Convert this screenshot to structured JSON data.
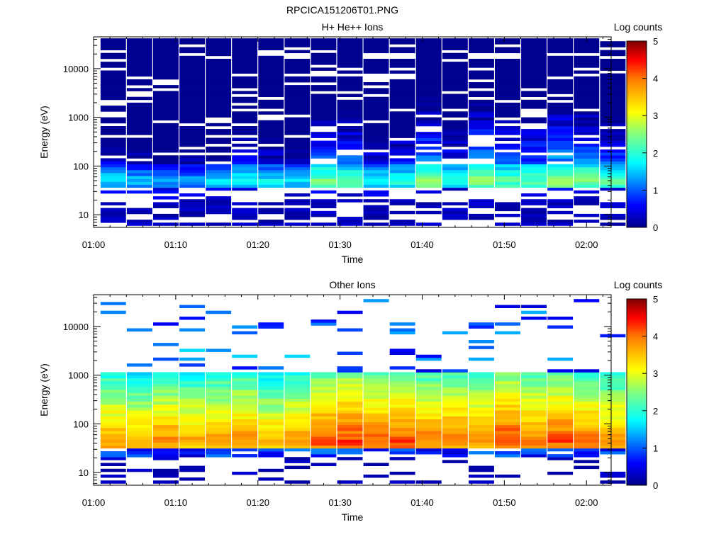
{
  "figure": {
    "filename": "RPCICA151206T01.PNG"
  },
  "chart_data": [
    {
      "type": "heatmap",
      "title": "H+ He++ Ions",
      "xlabel": "Time",
      "ylabel": "Energy (eV)",
      "colorbar_label": "Log counts",
      "x_range_minutes": [
        60,
        123
      ],
      "x_ticks": [
        "01:00",
        "01:10",
        "01:20",
        "01:30",
        "01:40",
        "01:50",
        "02:00"
      ],
      "y_scale": "log",
      "y_range": [
        5.5,
        45000
      ],
      "y_ticks": [
        "10",
        "100",
        "1000",
        "10000"
      ],
      "color_range": [
        0,
        5
      ],
      "colorbar_ticks": [
        "0",
        "1",
        "2",
        "3",
        "4",
        "5"
      ],
      "time_bins_minutes": [
        62.4,
        65.6,
        68.8,
        72.0,
        75.2,
        78.4,
        81.6,
        84.8,
        88.0,
        91.2,
        94.4,
        97.6,
        100.8,
        104.0,
        107.2,
        110.4,
        113.6,
        116.8,
        120.0,
        123.2
      ],
      "profile": "proton",
      "peak_log_counts": [
        1.7,
        1.5,
        1.5,
        1.4,
        1.6,
        1.9,
        1.7,
        1.6,
        2.4,
        2.3,
        1.8,
        2.0,
        2.6,
        2.0,
        2.6,
        2.3,
        2.3,
        2.6,
        2.5,
        2.3
      ],
      "peak_energy_eV": 50
    },
    {
      "type": "heatmap",
      "title": "Other Ions",
      "xlabel": "Time",
      "ylabel": "Energy (eV)",
      "colorbar_label": "Log counts",
      "x_range_minutes": [
        60,
        123
      ],
      "x_ticks": [
        "01:00",
        "01:10",
        "01:20",
        "01:30",
        "01:40",
        "01:50",
        "02:00"
      ],
      "y_scale": "log",
      "y_range": [
        5.5,
        45000
      ],
      "y_ticks": [
        "10",
        "100",
        "1000",
        "10000"
      ],
      "color_range": [
        0,
        5
      ],
      "colorbar_ticks": [
        "0",
        "1",
        "2",
        "3",
        "4",
        "5"
      ],
      "time_bins_minutes": [
        62.4,
        65.6,
        68.8,
        72.0,
        75.2,
        78.4,
        81.6,
        84.8,
        88.0,
        91.2,
        94.4,
        97.6,
        100.8,
        104.0,
        107.2,
        110.4,
        113.6,
        116.8,
        120.0,
        123.2
      ],
      "profile": "heavy",
      "peak_log_counts": [
        3.8,
        3.6,
        3.9,
        3.7,
        3.8,
        3.9,
        3.6,
        3.8,
        4.2,
        4.3,
        4.1,
        4.2,
        4.0,
        4.0,
        3.9,
        4.3,
        4.0,
        4.2,
        4.0,
        3.8
      ],
      "peak_energy_eV": 45
    }
  ]
}
